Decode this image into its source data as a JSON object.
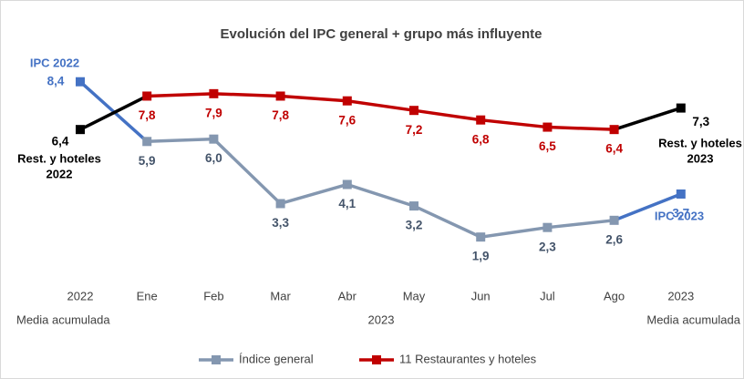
{
  "chart_data": {
    "type": "line",
    "title": "Evolución del IPC general + grupo más influyente",
    "categories": [
      "2022",
      "Ene",
      "Feb",
      "Mar",
      "Abr",
      "May",
      "Jun",
      "Jul",
      "Ago",
      "2023"
    ],
    "group_labels": [
      "Media acumulada",
      "2023",
      "Media acumulada"
    ],
    "ylim": [
      0,
      9
    ],
    "series": [
      {
        "name": "Índice general",
        "color": "#8497b0",
        "end_color": "#4472c4",
        "label_color": "#44546a",
        "values": [
          8.4,
          5.9,
          6.0,
          3.3,
          4.1,
          3.2,
          1.9,
          2.3,
          2.6,
          3.7
        ],
        "value_labels": [
          "8,4",
          "5,9",
          "6,0",
          "3,3",
          "4,1",
          "3,2",
          "1,9",
          "2,3",
          "2,6",
          "3,7"
        ]
      },
      {
        "name": "11 Restaurantes y hoteles",
        "color": "#c00000",
        "end_color": "#000000",
        "label_color": "#c00000",
        "values": [
          6.4,
          7.8,
          7.9,
          7.8,
          7.6,
          7.2,
          6.8,
          6.5,
          6.4,
          7.3
        ],
        "value_labels": [
          "6,4",
          "7,8",
          "7,9",
          "7,8",
          "7,6",
          "7,2",
          "6,8",
          "6,5",
          "6,4",
          "7,3"
        ]
      }
    ],
    "annotations": [
      {
        "lines": [
          "IPC  2022"
        ],
        "color": "#4472c4"
      },
      {
        "lines": [
          "Rest. y hoteles",
          "2022"
        ],
        "color": "#000000"
      },
      {
        "lines": [
          "IPC 2023"
        ],
        "color": "#4472c4"
      },
      {
        "lines": [
          "Rest. y hoteles",
          "2023"
        ],
        "color": "#000000"
      }
    ]
  }
}
